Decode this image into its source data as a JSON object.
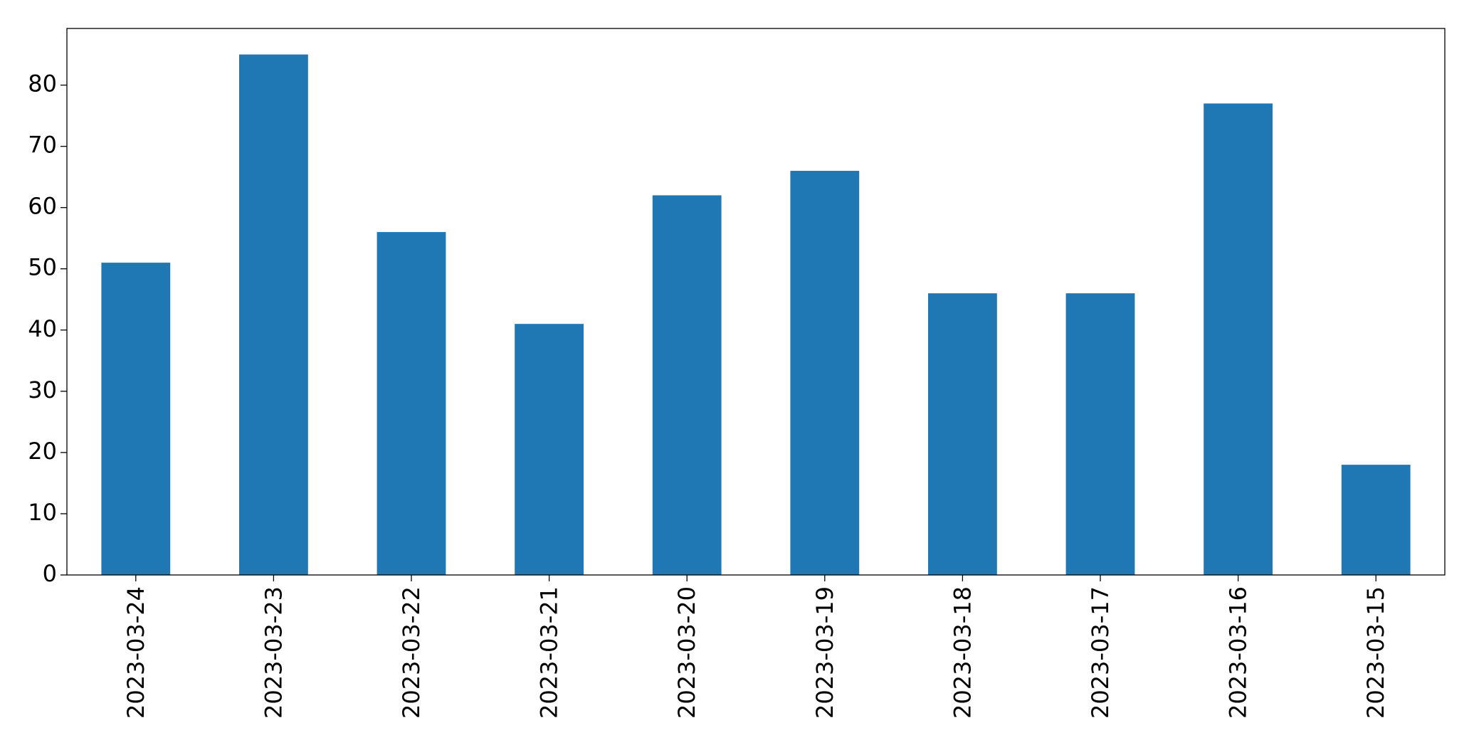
{
  "chart_data": {
    "type": "bar",
    "categories": [
      "2023-03-24",
      "2023-03-23",
      "2023-03-22",
      "2023-03-21",
      "2023-03-20",
      "2023-03-19",
      "2023-03-18",
      "2023-03-17",
      "2023-03-16",
      "2023-03-15"
    ],
    "values": [
      51,
      85,
      56,
      41,
      62,
      66,
      46,
      46,
      77,
      18
    ],
    "color": "#1f77b4",
    "ylim": [
      0,
      89.25
    ],
    "yticks": [
      0,
      10,
      20,
      30,
      40,
      50,
      60,
      70,
      80
    ],
    "grid": false
  }
}
